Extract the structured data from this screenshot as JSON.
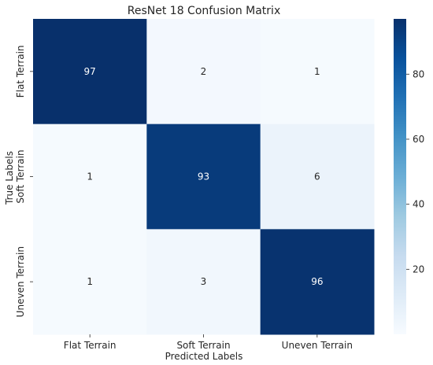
{
  "chart_data": {
    "type": "heatmap",
    "title": "ResNet 18 Confusion Matrix",
    "xlabel": "Predicted Labels",
    "ylabel": "True Labels",
    "x_categories": [
      "Flat Terrain",
      "Soft Terrain",
      "Uneven Terrain"
    ],
    "y_categories": [
      "Flat Terrain",
      "Soft Terrain",
      "Uneven Terrain"
    ],
    "values": [
      [
        97,
        2,
        1
      ],
      [
        1,
        93,
        6
      ],
      [
        1,
        3,
        96
      ]
    ],
    "colorbar": {
      "min": 0,
      "max": 97,
      "ticks": [
        20,
        40,
        60,
        80
      ]
    },
    "colormap": "Blues",
    "colormap_low": "#f7fbff",
    "colormap_high": "#08306b"
  }
}
